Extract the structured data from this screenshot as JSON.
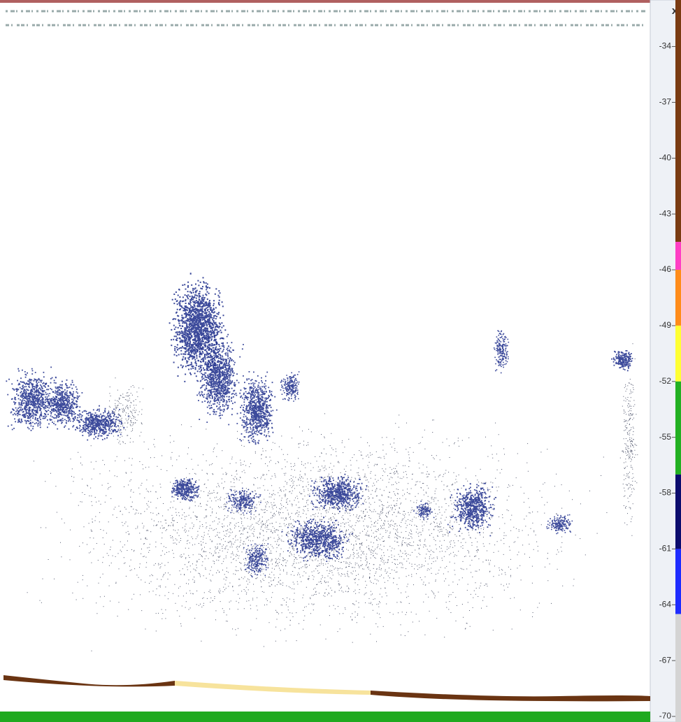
{
  "close_label": "x",
  "colorbar": {
    "range": [
      -31.5,
      -70.3
    ],
    "ticks": [
      -34,
      -37,
      -40,
      -43,
      -46,
      -49,
      -52,
      -55,
      -58,
      -61,
      -64,
      -67,
      -70
    ],
    "segments": [
      {
        "from": -31.5,
        "to": -44.5,
        "color": "#7a3b12"
      },
      {
        "from": -44.5,
        "to": -46,
        "color": "#ff3fc4"
      },
      {
        "from": -46,
        "to": -49,
        "color": "#ff8c1a"
      },
      {
        "from": -49,
        "to": -52,
        "color": "#ffff33"
      },
      {
        "from": -52,
        "to": -57,
        "color": "#22b022"
      },
      {
        "from": -57,
        "to": -61,
        "color": "#0c0c6e"
      },
      {
        "from": -61,
        "to": -64.5,
        "color": "#1e2cff"
      },
      {
        "from": -64.5,
        "to": -70.3,
        "color": "#d4d4d4"
      }
    ]
  }
}
